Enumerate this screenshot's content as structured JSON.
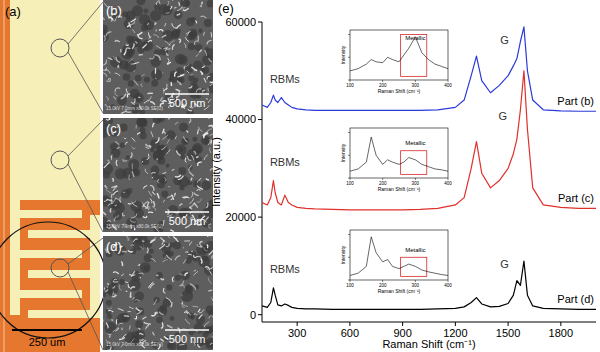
{
  "panels": [
    {
      "label": "(a)",
      "scale_bar": "250 um"
    },
    {
      "label": "(b)",
      "scale_bar": "500 nm",
      "info": "15.0kV 7.0mm x80.0k SE(U)"
    },
    {
      "label": "(c)",
      "scale_bar": "500 nm",
      "info": "15.0kV 7.0mm x80.0k SE(U)"
    },
    {
      "label": "(d)",
      "scale_bar": "500 nm",
      "info": "15.0kV 7.0mm x80.0k SE(U)"
    }
  ],
  "chart_data": [
    {
      "type": "line",
      "title": "(e)",
      "x_label": "Raman Shift (cm⁻¹)",
      "y_label": "Intensity (a.u.)",
      "x": [
        100,
        130,
        150,
        165,
        175,
        190,
        210,
        230,
        250,
        270,
        300,
        350,
        400,
        500,
        600,
        700,
        800,
        900,
        1000,
        1100,
        1200,
        1250,
        1290,
        1320,
        1350,
        1400,
        1450,
        1500,
        1530,
        1550,
        1570,
        1590,
        1610,
        1640,
        1700,
        1800,
        1900,
        2000
      ],
      "series": [
        {
          "name": "Part (b)",
          "color": "#2b3bd9",
          "values": [
            43000,
            42500,
            43500,
            45000,
            44000,
            43500,
            44500,
            43500,
            43000,
            42500,
            42200,
            42000,
            41900,
            41900,
            41900,
            41900,
            41900,
            41900,
            41900,
            42000,
            42500,
            44000,
            49000,
            53000,
            48000,
            45500,
            47000,
            49000,
            51000,
            52500,
            56000,
            59000,
            50000,
            44000,
            42000,
            41800,
            41700,
            41700
          ]
        },
        {
          "name": "Part (c)",
          "color": "#e0302c",
          "values": [
            23000,
            22500,
            24000,
            27500,
            25000,
            23000,
            22500,
            24500,
            23000,
            22500,
            22000,
            21800,
            21700,
            21600,
            21500,
            21500,
            21500,
            21500,
            21600,
            21800,
            22500,
            24000,
            30000,
            35500,
            29000,
            26000,
            27500,
            30000,
            33000,
            36000,
            42000,
            50000,
            38000,
            26000,
            22500,
            22000,
            21800,
            21800
          ]
        },
        {
          "name": "Part (d)",
          "color": "#000000",
          "values": [
            1800,
            1500,
            2500,
            5500,
            4000,
            2000,
            1800,
            2200,
            1900,
            1500,
            1300,
            1200,
            1200,
            1100,
            1100,
            1100,
            1100,
            1100,
            1100,
            1200,
            1300,
            1600,
            2500,
            3500,
            2200,
            1600,
            1700,
            2300,
            4000,
            7000,
            6000,
            11000,
            4000,
            1800,
            1300,
            1200,
            1100,
            1100
          ]
        }
      ],
      "xlim": [
        100,
        2000
      ],
      "xticks": [
        300,
        600,
        900,
        1200,
        1500,
        1800
      ],
      "ylim": [
        -1500,
        60000
      ],
      "yticks": [
        0,
        20000,
        40000,
        60000
      ],
      "annotations": [
        {
          "text": "RBMs",
          "x": 230,
          "y": 47500
        },
        {
          "text": "G",
          "x": 1480,
          "y": 55500
        },
        {
          "text": "RBMs",
          "x": 230,
          "y": 30500
        },
        {
          "text": "G",
          "x": 1470,
          "y": 40000
        },
        {
          "text": "RBMs",
          "x": 230,
          "y": 8500
        },
        {
          "text": "G",
          "x": 1480,
          "y": 9500
        }
      ]
    },
    {
      "type": "line",
      "x_label": "Raman Shift (cm⁻¹)",
      "y_label": "Intensity",
      "x": [
        100,
        125,
        150,
        165,
        180,
        200,
        215,
        230,
        250,
        265,
        280,
        300,
        320,
        340,
        360,
        380,
        400
      ],
      "series": [
        {
          "color": "#000000",
          "values": [
            20,
            25,
            35,
            45,
            40,
            38,
            50,
            45,
            40,
            55,
            70,
            95,
            60,
            45,
            35,
            30,
            25
          ]
        }
      ],
      "xlim": [
        100,
        400
      ],
      "xticks": [
        100,
        200,
        300,
        400
      ],
      "ylim": [
        0,
        110
      ],
      "yticks": [
        0,
        50,
        100
      ],
      "tick_labels": "x",
      "metallic_box": {
        "x": [
          255,
          335
        ],
        "y": [
          8,
          100
        ],
        "color": "#d62728"
      },
      "annotations": [
        {
          "text": "Metallic",
          "x": 300,
          "y": 88
        }
      ]
    },
    {
      "type": "line",
      "x_label": "Raman Shift (cm⁻¹)",
      "y_label": "Intensity",
      "x": [
        100,
        125,
        150,
        165,
        180,
        200,
        215,
        230,
        250,
        265,
        280,
        300,
        320,
        340,
        360,
        380,
        400
      ],
      "series": [
        {
          "color": "#000000",
          "values": [
            15,
            20,
            35,
            90,
            50,
            30,
            40,
            35,
            30,
            35,
            45,
            40,
            30,
            25,
            20,
            18,
            15
          ]
        }
      ],
      "xlim": [
        100,
        400
      ],
      "xticks": [
        100,
        200,
        300,
        400
      ],
      "ylim": [
        0,
        110
      ],
      "yticks": [
        0,
        50,
        100
      ],
      "tick_labels": "x",
      "metallic_box": {
        "x": [
          255,
          335
        ],
        "y": [
          8,
          60
        ],
        "color": "#d62728"
      },
      "annotations": [
        {
          "text": "Metallic",
          "x": 300,
          "y": 72
        }
      ]
    },
    {
      "type": "line",
      "x_label": "Raman Shift (cm⁻¹)",
      "y_label": "Intensity",
      "x": [
        100,
        125,
        150,
        165,
        180,
        200,
        215,
        230,
        250,
        265,
        280,
        300,
        320,
        340,
        360,
        380,
        400
      ],
      "series": [
        {
          "color": "#000000",
          "values": [
            10,
            15,
            30,
            95,
            60,
            40,
            45,
            30,
            25,
            30,
            35,
            30,
            22,
            18,
            15,
            12,
            10
          ]
        }
      ],
      "xlim": [
        100,
        400
      ],
      "xticks": [
        100,
        200,
        300,
        400
      ],
      "ylim": [
        0,
        110
      ],
      "yticks": [
        0,
        50,
        100
      ],
      "tick_labels": "x",
      "metallic_box": {
        "x": [
          255,
          335
        ],
        "y": [
          8,
          50
        ],
        "color": "#d62728"
      },
      "annotations": [
        {
          "text": "Metallic",
          "x": 300,
          "y": 62
        }
      ]
    }
  ]
}
